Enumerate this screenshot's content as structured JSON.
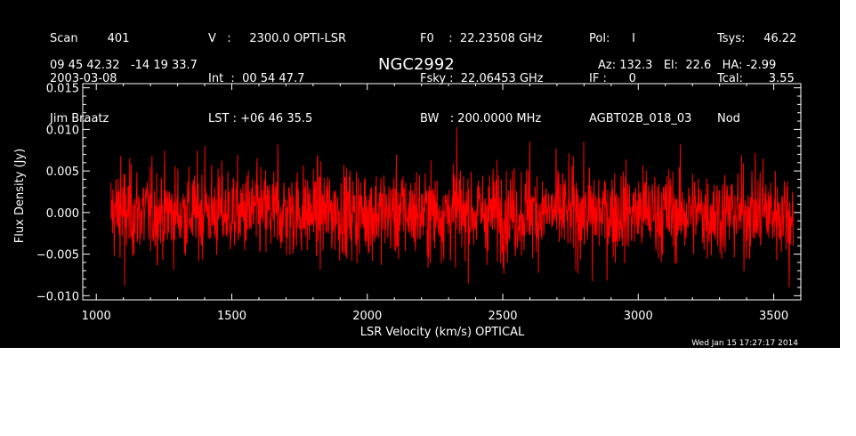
{
  "header": {
    "col1": [
      "Scan        401",
      "2003-03-08",
      "Jim Braatz"
    ],
    "col2": [
      "V   :     2300.0 OPTI-LSR",
      "Int  :  00 54 47.7",
      "LST : +06 46 35.5"
    ],
    "col3": [
      "F0    :  22.23508 GHz",
      "Fsky :  22.06453 GHz",
      "BW   : 200.0000 MHz"
    ],
    "col4": [
      "Pol:      I",
      "IF :      0",
      "AGBT02B_018_03"
    ],
    "col5": [
      "Tsys:     46.22",
      "Tcal:       3.55",
      "Nod"
    ],
    "coords": "09 45 42.32   -14 19 33.7",
    "azel": "Az: 132.3   El:  22.6   HA: -2.99"
  },
  "chart_data": {
    "type": "line",
    "title": "NGC2992",
    "xlabel": "LSR Velocity (km/s) OPTICAL",
    "ylabel": "Flux Density (Jy)",
    "xlim": [
      950,
      3600
    ],
    "ylim": [
      -0.0105,
      0.0155
    ],
    "xticks": [
      1000,
      1500,
      2000,
      2500,
      3000,
      3500
    ],
    "xtick_labels": [
      "1000",
      "1500",
      "2000",
      "2500",
      "3000",
      "3500"
    ],
    "yticks": [
      -0.01,
      -0.005,
      0.0,
      0.005,
      0.01,
      0.015
    ],
    "ytick_labels": [
      "−0.010",
      "−0.005",
      "0.000",
      "0.005",
      "0.010",
      "0.015"
    ],
    "line_color": "#ff0000",
    "series": [
      {
        "x_range": [
          1053,
          3572
        ],
        "noise_rms": 0.0027,
        "peak_values": [
          {
            "x": 1090,
            "y": 0.0068
          },
          {
            "x": 1105,
            "y": -0.0088
          },
          {
            "x": 1400,
            "y": 0.008
          },
          {
            "x": 1670,
            "y": 0.0082
          },
          {
            "x": 2330,
            "y": 0.0103
          },
          {
            "x": 2600,
            "y": 0.0085
          },
          {
            "x": 2830,
            "y": -0.0083
          },
          {
            "x": 3460,
            "y": 0.0065
          },
          {
            "x": 3558,
            "y": -0.009
          }
        ]
      }
    ]
  },
  "timestamp": "Wed Jan 15 17:27:17 2014"
}
